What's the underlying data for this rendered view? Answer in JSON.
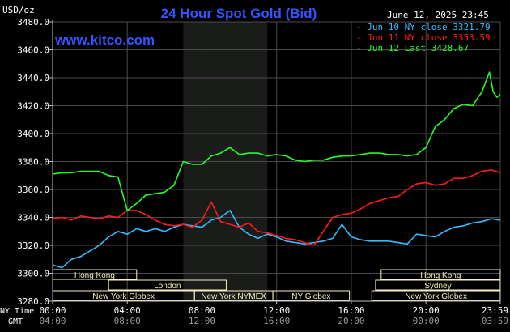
{
  "chart_data": {
    "type": "line",
    "title": "24 Hour Spot Gold (Bid)",
    "watermark": "www.kitco.com",
    "timestamp": "June 12, 2025 23:45",
    "ylabel": "USD/oz",
    "ylim": [
      3280,
      3480
    ],
    "y_ticks": [
      "3480.0",
      "3460.0",
      "3440.0",
      "3420.0",
      "3400.0",
      "3380.0",
      "3360.0",
      "3340.0",
      "3320.0",
      "3300.0",
      "3280.0"
    ],
    "y_tick_values": [
      3480,
      3460,
      3440,
      3420,
      3400,
      3380,
      3360,
      3340,
      3320,
      3300,
      3280
    ],
    "x_ticks_ny": [
      "00:00",
      "04:00",
      "08:00",
      "12:00",
      "16:00",
      "20:00",
      "23:59"
    ],
    "x_ticks_gmt": [
      "04:00",
      "08:00",
      "12:00",
      "16:00",
      "20:00",
      "00:00",
      "03:59"
    ],
    "x_tick_hours": [
      0,
      4,
      8,
      12,
      16,
      20,
      23.983
    ],
    "row_labels": {
      "ny": "NY Time",
      "gmt": "GMT"
    },
    "grid": true,
    "legend_position": "top-right",
    "highlight_hours": [
      7,
      11.5
    ],
    "colors": {
      "blue": "#33bbff",
      "red": "#ff1a1a",
      "green": "#22ff22",
      "axis": "#c0c0c0",
      "grid": "#4a4a4a",
      "text": "#ffffff",
      "title": "#3355ff",
      "band": "#f5f0c0",
      "highlight": "#1a1c1a"
    },
    "series": [
      {
        "name": "Jun 10 NY close 3321.79",
        "color": "#33bbff",
        "x": [
          0,
          0.5,
          1,
          1.5,
          2,
          2.5,
          3,
          3.5,
          4,
          4.5,
          5,
          5.5,
          6,
          6.5,
          7,
          7.5,
          8,
          8.5,
          9,
          9.5,
          10,
          10.5,
          11,
          11.5,
          12,
          12.5,
          13,
          13.5,
          14,
          14.5,
          15,
          15.5,
          16,
          16.5,
          17,
          17.5,
          18,
          18.5,
          19,
          19.5,
          20,
          20.5,
          21,
          21.5,
          22,
          22.5,
          23,
          23.5,
          23.98
        ],
        "y": [
          3306,
          3304,
          3310,
          3312,
          3316,
          3320,
          3326,
          3330,
          3328,
          3332,
          3330,
          3332,
          3330,
          3333,
          3335,
          3334,
          3333,
          3338,
          3340,
          3345,
          3333,
          3328,
          3325,
          3328,
          3326,
          3323,
          3322,
          3321,
          3322,
          3323,
          3325,
          3335,
          3326,
          3324,
          3323,
          3323,
          3323,
          3322,
          3321,
          3328,
          3327,
          3326,
          3330,
          3333,
          3334,
          3336,
          3337,
          3339,
          3338
        ]
      },
      {
        "name": "Jun 11 NY close 3353.59",
        "color": "#ff1a1a",
        "x": [
          0,
          0.5,
          1,
          1.5,
          2,
          2.5,
          3,
          3.5,
          4,
          4.5,
          5,
          5.5,
          6,
          6.5,
          7,
          7.5,
          8,
          8.5,
          9,
          9.5,
          10,
          10.5,
          11,
          11.5,
          12,
          12.5,
          13,
          13.5,
          14,
          14.5,
          15,
          15.5,
          16,
          16.5,
          17,
          17.5,
          18,
          18.5,
          19,
          19.5,
          20,
          20.5,
          21,
          21.5,
          22,
          22.5,
          23,
          23.5,
          23.98
        ],
        "y": [
          3339,
          3340,
          3338,
          3341,
          3340,
          3339,
          3341,
          3340,
          3345,
          3345,
          3342,
          3338,
          3335,
          3334,
          3335,
          3333,
          3338,
          3351,
          3337,
          3335,
          3333,
          3336,
          3330,
          3329,
          3327,
          3325,
          3324,
          3322,
          3320,
          3330,
          3340,
          3342,
          3343,
          3346,
          3350,
          3352,
          3354,
          3355,
          3360,
          3364,
          3365,
          3363,
          3364,
          3368,
          3368,
          3370,
          3373,
          3374,
          3372
        ]
      },
      {
        "name": "Jun 12 Last 3428.67",
        "color": "#22ff22",
        "x": [
          0,
          0.5,
          1,
          1.5,
          2,
          2.5,
          3,
          3.5,
          4,
          4.5,
          5,
          5.5,
          6,
          6.5,
          7,
          7.5,
          8,
          8.5,
          9,
          9.5,
          10,
          10.5,
          11,
          11.5,
          12,
          12.5,
          13,
          13.5,
          14,
          14.5,
          15,
          15.5,
          16,
          16.5,
          17,
          17.5,
          18,
          18.5,
          19,
          19.5,
          20,
          20.5,
          21,
          21.5,
          22,
          22.5,
          23,
          23.4,
          23.6,
          23.8,
          23.98
        ],
        "y": [
          3371,
          3372,
          3372,
          3373,
          3373,
          3373,
          3370,
          3369,
          3345,
          3350,
          3356,
          3357,
          3358,
          3363,
          3380,
          3378,
          3378,
          3384,
          3386,
          3390,
          3385,
          3386,
          3386,
          3384,
          3385,
          3384,
          3381,
          3380,
          3381,
          3381,
          3383,
          3384,
          3384,
          3385,
          3386,
          3386,
          3385,
          3385,
          3384,
          3385,
          3390,
          3405,
          3410,
          3418,
          3421,
          3420,
          3430,
          3444,
          3430,
          3426,
          3428
        ]
      }
    ],
    "market_bands": [
      {
        "label": "Hong Kong",
        "row": 0,
        "start": 0,
        "end": 4.5
      },
      {
        "label": "Hong Kong",
        "row": 0,
        "start": 17.6,
        "end": 23.98
      },
      {
        "label": "London",
        "row": 1,
        "start": 3,
        "end": 9.3
      },
      {
        "label": "Sydney",
        "row": 1,
        "start": 17.3,
        "end": 23.98
      },
      {
        "label": "New York Globex",
        "row": 2,
        "start": 0,
        "end": 7.6
      },
      {
        "label": "New York NYMEX",
        "row": 2,
        "start": 7.6,
        "end": 11.8
      },
      {
        "label": "NY Globex",
        "row": 2,
        "start": 11.8,
        "end": 15.9
      },
      {
        "label": "New York Globex",
        "row": 2,
        "start": 17.1,
        "end": 23.98
      }
    ]
  }
}
